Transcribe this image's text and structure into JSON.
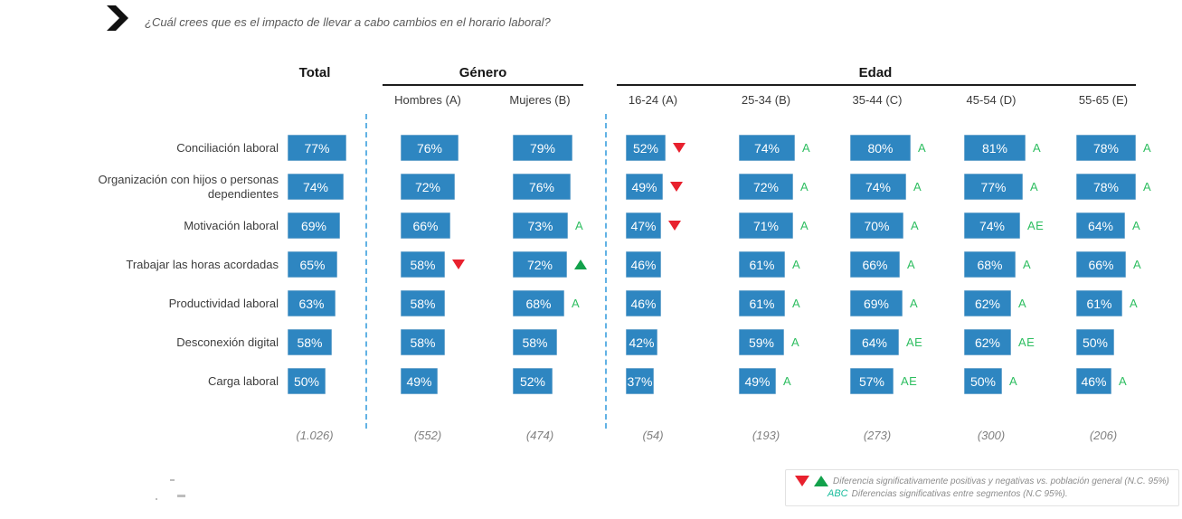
{
  "title": {
    "icon": "chevron-right-icon",
    "text": "¿Cuál crees que es el impacto de llevar a cabo cambios en el horario laboral?"
  },
  "table": {
    "group_headers": [
      {
        "label": "Total"
      },
      {
        "label": "Género"
      },
      {
        "label": "Edad"
      }
    ],
    "columns": [
      {
        "id": "total",
        "group": "Total",
        "header": "",
        "base": "(1.026)"
      },
      {
        "id": "hombres",
        "group": "Género",
        "header": "Hombres (A)",
        "base": "(552)"
      },
      {
        "id": "mujeres",
        "group": "Género",
        "header": "Mujeres (B)",
        "base": "(474)"
      },
      {
        "id": "16-24",
        "group": "Edad",
        "header": "16-24 (A)",
        "base": "(54)"
      },
      {
        "id": "25-34",
        "group": "Edad",
        "header": "25-34 (B)",
        "base": "(193)"
      },
      {
        "id": "35-44",
        "group": "Edad",
        "header": "35-44 (C)",
        "base": "(273)"
      },
      {
        "id": "45-54",
        "group": "Edad",
        "header": "45-54 (D)",
        "base": "(300)"
      },
      {
        "id": "55-65",
        "group": "Edad",
        "header": "55-65 (E)",
        "base": "(206)"
      }
    ],
    "rows": [
      {
        "label": "Conciliación laboral",
        "cells": [
          {
            "value": "77%"
          },
          {
            "value": "76%"
          },
          {
            "value": "79%"
          },
          {
            "value": "52%",
            "marker": "down"
          },
          {
            "value": "74%",
            "marker": "A"
          },
          {
            "value": "80%",
            "marker": "A"
          },
          {
            "value": "81%",
            "marker": "A"
          },
          {
            "value": "78%",
            "marker": "A"
          }
        ]
      },
      {
        "label": "Organización con hijos o personas dependientes",
        "cells": [
          {
            "value": "74%"
          },
          {
            "value": "72%"
          },
          {
            "value": "76%"
          },
          {
            "value": "49%",
            "marker": "down"
          },
          {
            "value": "72%",
            "marker": "A"
          },
          {
            "value": "74%",
            "marker": "A"
          },
          {
            "value": "77%",
            "marker": "A"
          },
          {
            "value": "78%",
            "marker": "A"
          }
        ]
      },
      {
        "label": "Motivación laboral",
        "cells": [
          {
            "value": "69%"
          },
          {
            "value": "66%"
          },
          {
            "value": "73%",
            "marker": "A"
          },
          {
            "value": "47%",
            "marker": "down"
          },
          {
            "value": "71%",
            "marker": "A"
          },
          {
            "value": "70%",
            "marker": "A"
          },
          {
            "value": "74%",
            "marker": "AE"
          },
          {
            "value": "64%",
            "marker": "A"
          }
        ]
      },
      {
        "label": "Trabajar las horas acordadas",
        "cells": [
          {
            "value": "65%"
          },
          {
            "value": "58%",
            "marker": "down"
          },
          {
            "value": "72%",
            "marker": "up"
          },
          {
            "value": "46%"
          },
          {
            "value": "61%",
            "marker": "A"
          },
          {
            "value": "66%",
            "marker": "A"
          },
          {
            "value": "68%",
            "marker": "A"
          },
          {
            "value": "66%",
            "marker": "A"
          }
        ]
      },
      {
        "label": "Productividad laboral",
        "cells": [
          {
            "value": "63%"
          },
          {
            "value": "58%"
          },
          {
            "value": "68%",
            "marker": "A"
          },
          {
            "value": "46%"
          },
          {
            "value": "61%",
            "marker": "A"
          },
          {
            "value": "69%",
            "marker": "A"
          },
          {
            "value": "62%",
            "marker": "A"
          },
          {
            "value": "61%",
            "marker": "A"
          }
        ]
      },
      {
        "label": "Desconexión digital",
        "cells": [
          {
            "value": "58%"
          },
          {
            "value": "58%"
          },
          {
            "value": "58%"
          },
          {
            "value": "42%"
          },
          {
            "value": "59%",
            "marker": "A"
          },
          {
            "value": "64%",
            "marker": "AE"
          },
          {
            "value": "62%",
            "marker": "AE"
          },
          {
            "value": "50%"
          }
        ]
      },
      {
        "label": "Carga laboral",
        "cells": [
          {
            "value": "50%"
          },
          {
            "value": "49%"
          },
          {
            "value": "52%"
          },
          {
            "value": "37%"
          },
          {
            "value": "49%",
            "marker": "A"
          },
          {
            "value": "57%",
            "marker": "AE"
          },
          {
            "value": "50%",
            "marker": "A"
          },
          {
            "value": "46%",
            "marker": "A"
          }
        ]
      }
    ]
  },
  "legend": {
    "line1_text": "Diferencia significativamente  positivas y negativas vs. población general (N.C. 95%)",
    "line2_prefix": "ABC",
    "line2_text": "Diferencias significativas entre segmentos (N.C 95%)."
  },
  "colors": {
    "bar_blue": "#2e86c1",
    "sig_letter_green": "#2ebe60",
    "triangle_red": "#e8212e",
    "triangle_green": "#12a14b",
    "abc_teal": "#1abc9c",
    "dashed_separator_blue": "#62b2e4"
  },
  "chart_data": {
    "type": "table",
    "title": "¿Cuál crees que es el impacto de llevar a cabo cambios en el horario laboral?",
    "units": "%",
    "categories": [
      "Conciliación laboral",
      "Organización con hijos o personas dependientes",
      "Motivación laboral",
      "Trabajar las horas acordadas",
      "Productividad laboral",
      "Desconexión digital",
      "Carga laboral"
    ],
    "series": [
      {
        "name": "Total",
        "base": 1026,
        "values": [
          77,
          74,
          69,
          65,
          63,
          58,
          50
        ],
        "markers": [
          null,
          null,
          null,
          null,
          null,
          null,
          null
        ]
      },
      {
        "name": "Hombres (A)",
        "base": 552,
        "values": [
          76,
          72,
          66,
          58,
          58,
          58,
          49
        ],
        "markers": [
          null,
          null,
          null,
          "down",
          null,
          null,
          null
        ]
      },
      {
        "name": "Mujeres (B)",
        "base": 474,
        "values": [
          79,
          76,
          73,
          72,
          68,
          58,
          52
        ],
        "markers": [
          null,
          null,
          "A",
          "up",
          "A",
          null,
          null
        ]
      },
      {
        "name": "16-24 (A)",
        "base": 54,
        "values": [
          52,
          49,
          47,
          46,
          46,
          42,
          37
        ],
        "markers": [
          "down",
          "down",
          "down",
          null,
          null,
          null,
          null
        ]
      },
      {
        "name": "25-34 (B)",
        "base": 193,
        "values": [
          74,
          72,
          71,
          61,
          61,
          59,
          49
        ],
        "markers": [
          "A",
          "A",
          "A",
          "A",
          "A",
          "A",
          "A"
        ]
      },
      {
        "name": "35-44 (C)",
        "base": 273,
        "values": [
          80,
          74,
          70,
          66,
          69,
          64,
          57
        ],
        "markers": [
          "A",
          "A",
          "A",
          "A",
          "A",
          "AE",
          "AE"
        ]
      },
      {
        "name": "45-54 (D)",
        "base": 300,
        "values": [
          81,
          77,
          74,
          68,
          62,
          62,
          50
        ],
        "markers": [
          "A",
          "A",
          "AE",
          "A",
          "A",
          "AE",
          "A"
        ]
      },
      {
        "name": "55-65 (E)",
        "base": 206,
        "values": [
          78,
          78,
          64,
          66,
          61,
          50,
          46
        ],
        "markers": [
          "A",
          "A",
          "A",
          "A",
          "A",
          null,
          "A"
        ]
      }
    ],
    "legend_notes": [
      "▼▲ Diferencia significativamente  positivas y negativas vs. población general (N.C. 95%)",
      "ABC Diferencias significativas entre segmentos (N.C 95%)."
    ],
    "marker_meaning": {
      "down": "significantly lower vs. general population",
      "up": "significantly higher vs. general population",
      "letters": "significantly higher than segment with that letter"
    }
  }
}
